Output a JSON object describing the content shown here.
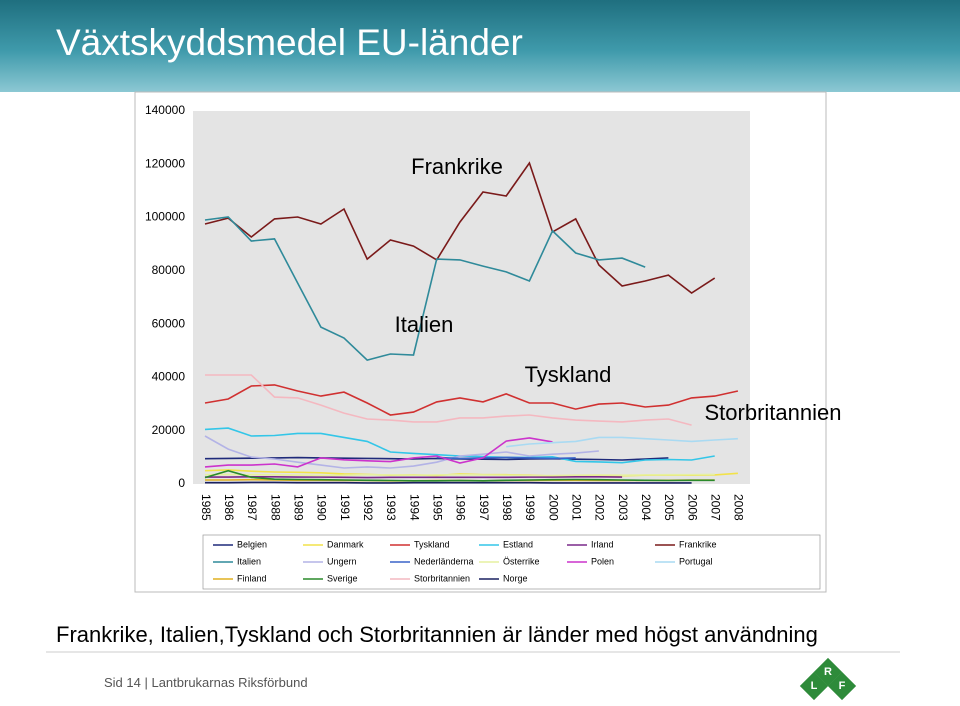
{
  "header": {
    "title": "Växtskyddsmedel EU-länder"
  },
  "chart_data": {
    "type": "line",
    "categories": [
      "1985",
      "1986",
      "1987",
      "1988",
      "1989",
      "1990",
      "1991",
      "1992",
      "1993",
      "1994",
      "1995",
      "1996",
      "1997",
      "1998",
      "1999",
      "2000",
      "2001",
      "2002",
      "2003",
      "2004",
      "2005",
      "2006",
      "2007",
      "2008"
    ],
    "ylim": [
      0,
      140000
    ],
    "yticks": [
      0,
      20000,
      40000,
      60000,
      80000,
      100000,
      120000,
      140000
    ],
    "annotations": [
      "Frankrike",
      "Italien",
      "Tyskland",
      "Storbritannien"
    ],
    "series": [
      {
        "name": "Belgien",
        "color": "#1f2a7a",
        "values": [
          9500,
          9600,
          9700,
          9800,
          9900,
          9800,
          9700,
          9600,
          9500,
          9400,
          9600,
          9400,
          9300,
          9200,
          9400,
          9500,
          9300,
          9200,
          9000,
          9400,
          9800,
          null,
          null,
          null
        ]
      },
      {
        "name": "Danmark",
        "color": "#f2e24a",
        "values": [
          5000,
          5300,
          4800,
          4500,
          4400,
          4200,
          3800,
          3600,
          3300,
          3400,
          3200,
          3800,
          3500,
          3500,
          3300,
          3000,
          3100,
          3000,
          3100,
          3300,
          3400,
          3300,
          3400,
          4000
        ]
      },
      {
        "name": "Tyskland",
        "color": "#d03030",
        "values": [
          30400,
          31900,
          36800,
          37200,
          34900,
          33000,
          34500,
          30400,
          25900,
          27000,
          30800,
          32300,
          30800,
          33800,
          30400,
          30400,
          28100,
          30000,
          30400,
          28900,
          29600,
          32300,
          33000,
          34900
        ]
      },
      {
        "name": "Estland",
        "color": "#33c6e8",
        "values": [
          20500,
          21000,
          18000,
          18200,
          19000,
          19000,
          17500,
          16000,
          12000,
          11500,
          11000,
          10500,
          10300,
          10000,
          10000,
          10200,
          8500,
          8300,
          8000,
          9000,
          9200,
          9000,
          10500,
          null
        ]
      },
      {
        "name": "Irland",
        "color": "#7a2a8a",
        "values": [
          2600,
          2600,
          2700,
          2700,
          2600,
          2600,
          2500,
          2400,
          2500,
          2500,
          2500,
          2500,
          2500,
          2500,
          2600,
          2600,
          2700,
          2700,
          2600,
          null,
          null,
          null,
          null,
          null
        ]
      },
      {
        "name": "Frankrike",
        "color": "#7a1a1a",
        "values": [
          97600,
          99800,
          92700,
          99500,
          100200,
          97600,
          103200,
          84400,
          91600,
          89300,
          84100,
          98300,
          109600,
          108100,
          120500,
          94600,
          99500,
          82200,
          74300,
          76200,
          78400,
          71700,
          77300,
          null
        ]
      },
      {
        "name": "Italien",
        "color": "#2f8a9a",
        "values": [
          99100,
          100200,
          91200,
          92000,
          75400,
          58900,
          54800,
          46500,
          48800,
          48400,
          84400,
          84100,
          81800,
          79600,
          76200,
          95000,
          86700,
          84100,
          84800,
          81400,
          null,
          null,
          null,
          null
        ]
      },
      {
        "name": "Ungern",
        "color": "#b3b3e6",
        "values": [
          18000,
          13100,
          10100,
          9400,
          8200,
          7100,
          6000,
          6400,
          6000,
          6700,
          8200,
          10500,
          11200,
          12000,
          10500,
          11200,
          11600,
          12400,
          null,
          null,
          null,
          null,
          null,
          null
        ]
      },
      {
        "name": "Nederländerna",
        "color": "#3a63c8",
        "values": [
          null,
          null,
          null,
          null,
          null,
          null,
          null,
          null,
          null,
          null,
          10000,
          9600,
          9800,
          10000,
          9800,
          9600,
          9800,
          null,
          null,
          null,
          null,
          null,
          null,
          null
        ]
      },
      {
        "name": "Österrike",
        "color": "#e6f0a0",
        "values": [
          3500,
          3600,
          3500,
          3400,
          3300,
          3200,
          3300,
          3500,
          3400,
          3300,
          3400,
          3500,
          3400,
          3300,
          3200,
          3200,
          3300,
          3400,
          3300,
          3400,
          3500,
          3500,
          3600,
          null
        ]
      },
      {
        "name": "Polen",
        "color": "#cc33cc",
        "values": [
          6400,
          7100,
          7100,
          7500,
          6400,
          9800,
          9100,
          8700,
          8400,
          9800,
          10500,
          7900,
          9800,
          16100,
          17300,
          15800,
          null,
          null,
          null,
          null,
          null,
          null,
          null,
          null
        ]
      },
      {
        "name": "Portugal",
        "color": "#a9daf2",
        "values": [
          null,
          null,
          null,
          null,
          null,
          null,
          null,
          null,
          null,
          null,
          null,
          null,
          null,
          14000,
          15000,
          15500,
          16000,
          17500,
          17500,
          17000,
          16500,
          16000,
          16500,
          17000
        ]
      },
      {
        "name": "Finland",
        "color": "#e0b020",
        "values": [
          1500,
          1500,
          1600,
          1500,
          1400,
          1400,
          1300,
          1300,
          1200,
          1200,
          1300,
          1300,
          1200,
          1300,
          1300,
          1400,
          1400,
          1300,
          1300,
          1400,
          1400,
          1500,
          1500,
          null
        ]
      },
      {
        "name": "Sverige",
        "color": "#2a8a2a",
        "values": [
          2400,
          5000,
          2500,
          1800,
          1700,
          1600,
          1500,
          1400,
          1300,
          1200,
          1200,
          1300,
          1200,
          1400,
          1500,
          1600,
          1700,
          1600,
          1500,
          1400,
          1300,
          1400,
          1400,
          null
        ]
      },
      {
        "name": "Storbritannien",
        "color": "#f4b8c0",
        "values": [
          40900,
          40900,
          40900,
          32600,
          32300,
          29600,
          26600,
          24400,
          24000,
          23300,
          23300,
          24800,
          24800,
          25500,
          25900,
          24800,
          24000,
          23600,
          23300,
          24000,
          24400,
          22100,
          null,
          null
        ]
      },
      {
        "name": "Norge",
        "color": "#1a2060",
        "values": [
          500,
          500,
          600,
          600,
          500,
          500,
          500,
          400,
          400,
          500,
          500,
          500,
          500,
          500,
          500,
          400,
          400,
          400,
          400,
          400,
          400,
          400,
          null,
          null
        ]
      }
    ]
  },
  "summary": "Frankrike, Italien,Tyskland och Storbritannien är länder med högst användning",
  "footer": "Sid 14 | Lantbrukarnas Riksförbund",
  "logo": {
    "letters": [
      "R",
      "L",
      "F"
    ]
  }
}
